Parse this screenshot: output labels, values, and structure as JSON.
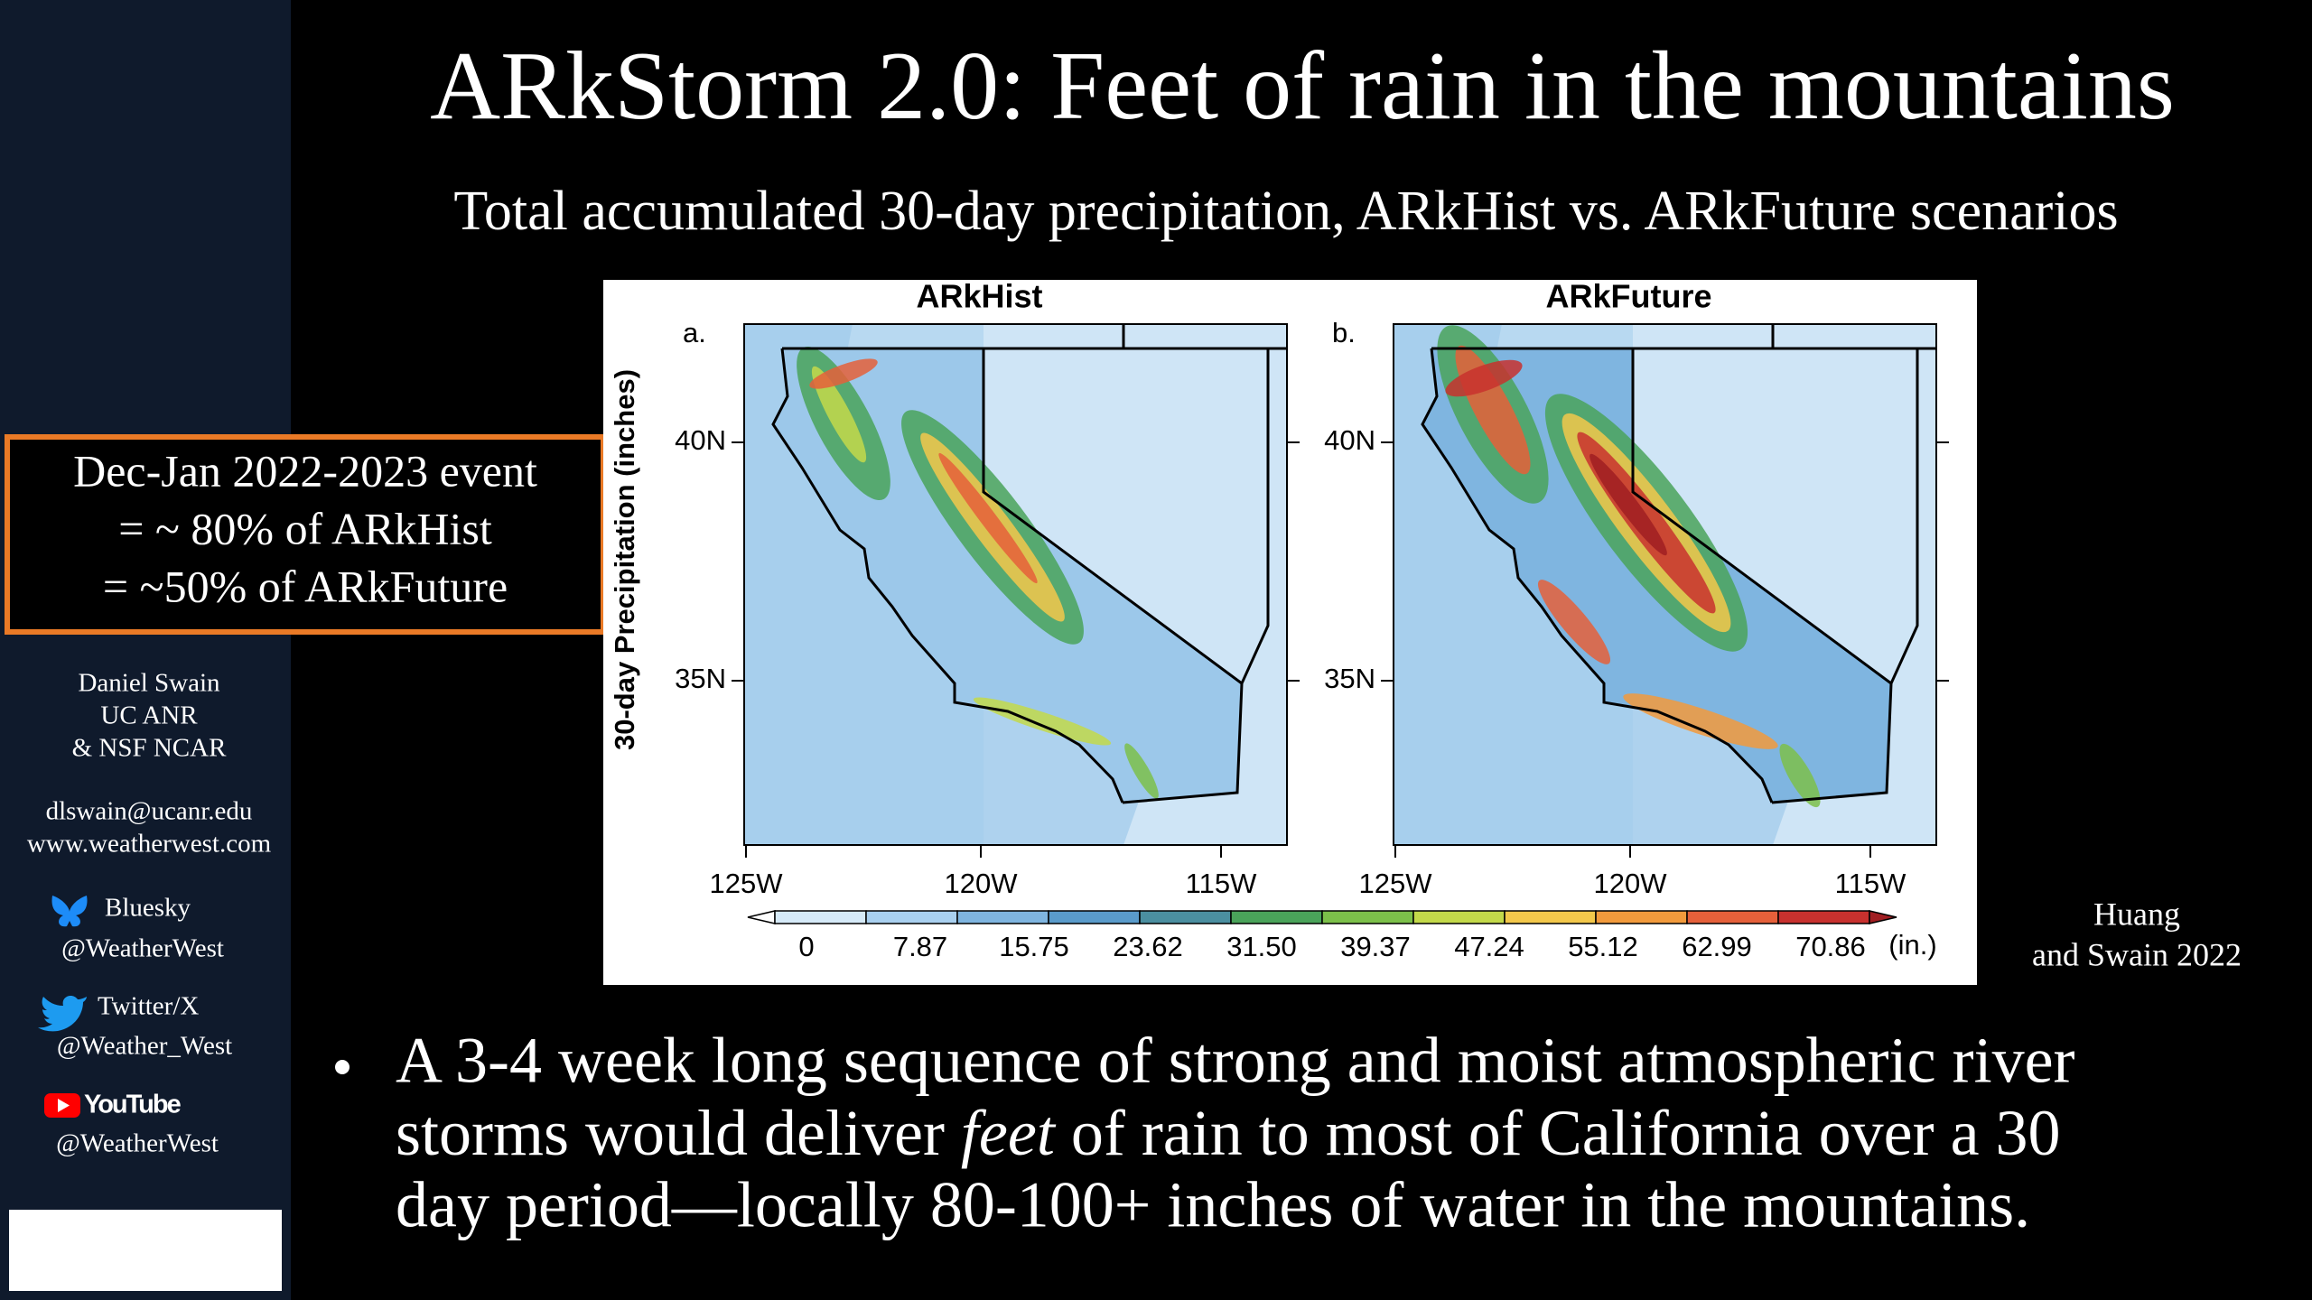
{
  "title": "ARkStorm 2.0: Feet of rain in the mountains",
  "subtitle": "Total accumulated 30-day precipitation, ARkHist vs. ARkFuture scenarios",
  "callout": {
    "lines": [
      "Dec-Jan 2022-2023 event",
      "= ~ 80% of ARkHist",
      "= ~50% of ARkFuture"
    ]
  },
  "sidebar": {
    "author": [
      "Daniel Swain",
      "UC ANR",
      "& NSF NCAR"
    ],
    "contact": [
      "dlswain@ucanr.edu",
      "www.weatherwest.com"
    ],
    "social": [
      {
        "platform": "Bluesky",
        "handle": "@WeatherWest"
      },
      {
        "platform": "Twitter/X",
        "handle": "@Weather_West"
      },
      {
        "platform": "YouTube",
        "handle": "@WeatherWest"
      }
    ]
  },
  "figure": {
    "y_axis_label": "30-day Precipitation (inches)",
    "panels": [
      {
        "letter": "a.",
        "title": "ARkHist"
      },
      {
        "letter": "b.",
        "title": "ARkFuture"
      }
    ],
    "lat_labels": [
      "40N",
      "35N"
    ],
    "lon_labels": [
      "125W",
      "120W",
      "115W"
    ],
    "colorbar_labels": [
      "0",
      "7.87",
      "15.75",
      "23.62",
      "31.50",
      "39.37",
      "47.24",
      "55.12",
      "62.99",
      "70.86"
    ],
    "colorbar_unit": "(in.)"
  },
  "citation": [
    "Huang",
    "and Swain 2022"
  ],
  "bullet": {
    "line1": "A 3-4 week long sequence of strong and moist atmospheric river",
    "line2": [
      "storms would deliver ",
      "feet",
      " of rain to most of California over a 30"
    ],
    "line3": "day period—locally 80-100+ inches of water in the mountains."
  }
}
